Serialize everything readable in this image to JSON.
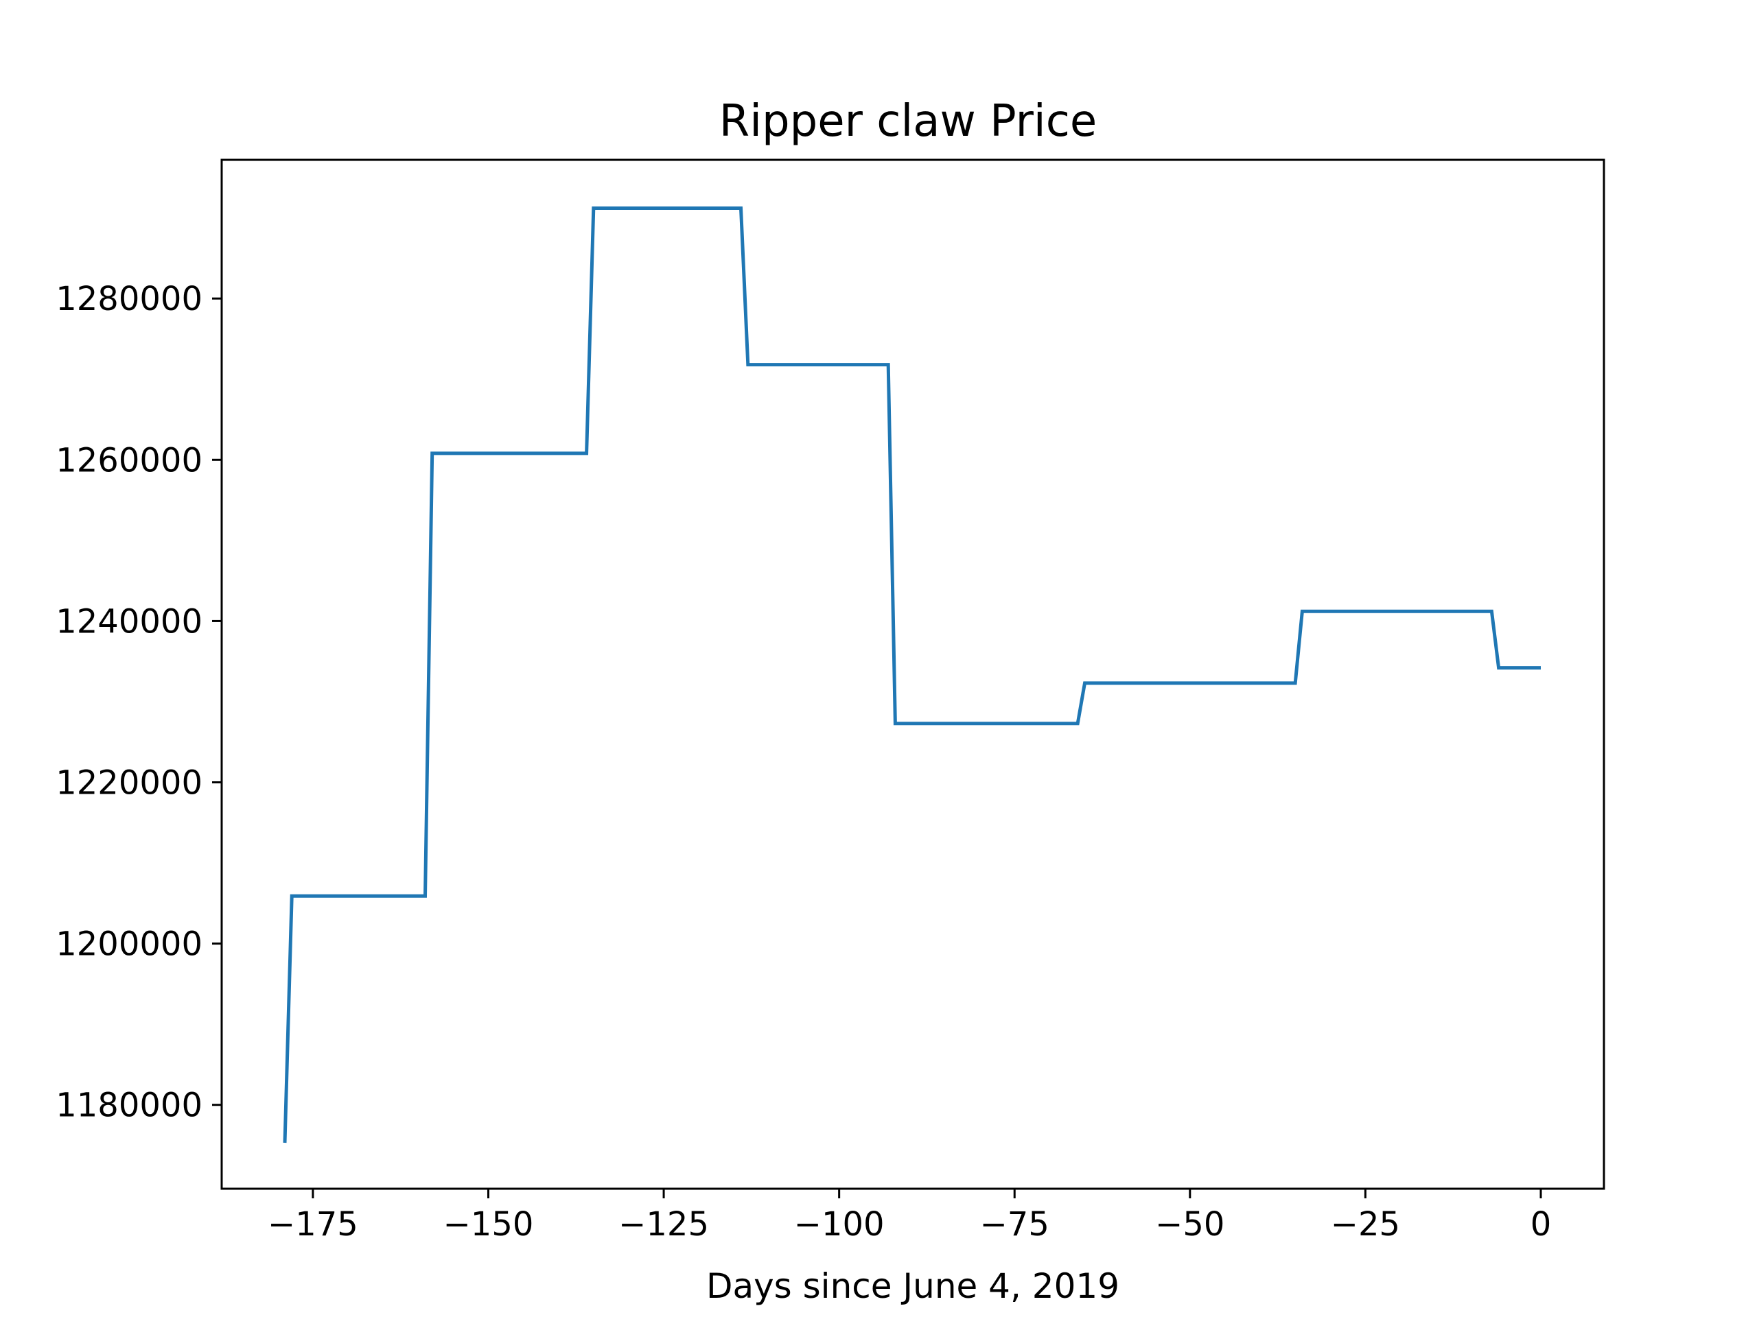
{
  "chart_data": {
    "type": "line",
    "title": "Ripper claw Price",
    "xlabel": "Days since June 4, 2019",
    "ylabel": "",
    "xlim": [
      -188,
      9
    ],
    "ylim": [
      1169600,
      1297200
    ],
    "x_ticks": [
      -175,
      -150,
      -125,
      -100,
      -75,
      -50,
      -25,
      0
    ],
    "x_tick_labels": [
      "−175",
      "−150",
      "−125",
      "−100",
      "−75",
      "−50",
      "−25",
      "0"
    ],
    "y_ticks": [
      1180000,
      1200000,
      1220000,
      1240000,
      1260000,
      1280000
    ],
    "y_tick_labels": [
      "1180000",
      "1200000",
      "1220000",
      "1240000",
      "1260000",
      "1280000"
    ],
    "grid": false,
    "series": [
      {
        "color": "#1f77b4",
        "x": [
          -179,
          -178,
          -159,
          -158,
          -136,
          -135,
          -114,
          -113,
          -93,
          -92,
          -66,
          -65,
          -35,
          -34,
          -7,
          -6,
          0
        ],
        "y": [
          1175300,
          1205900,
          1205900,
          1260800,
          1260800,
          1291200,
          1291200,
          1271800,
          1271800,
          1227300,
          1227300,
          1232300,
          1232300,
          1241200,
          1241200,
          1234200,
          1234200
        ]
      }
    ]
  }
}
